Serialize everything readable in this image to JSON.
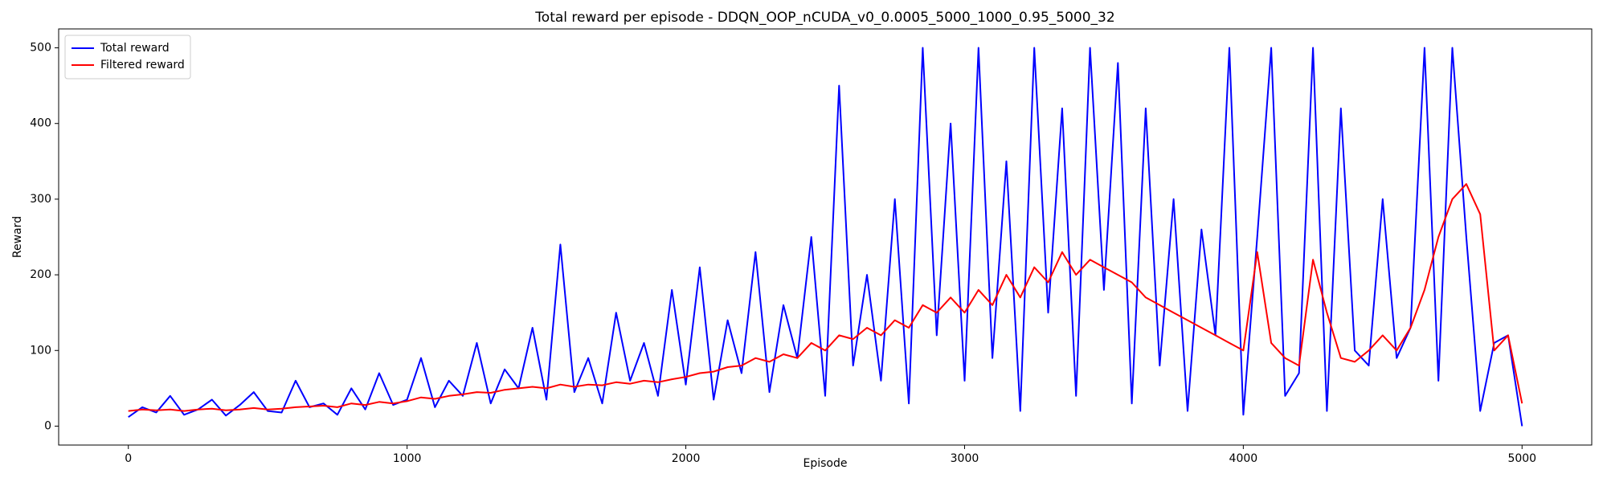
{
  "chart_data": {
    "type": "line",
    "title": "Total reward per episode - DDQN_OOP_nCUDA_v0_0.0005_5000_1000_0.95_5000_32",
    "x_label": "Episode",
    "y_label": "Reward",
    "x": [
      0,
      50,
      100,
      150,
      200,
      250,
      300,
      350,
      400,
      450,
      500,
      550,
      600,
      650,
      700,
      750,
      800,
      850,
      900,
      950,
      1000,
      1050,
      1100,
      1150,
      1200,
      1250,
      1300,
      1350,
      1400,
      1450,
      1500,
      1550,
      1600,
      1650,
      1700,
      1750,
      1800,
      1850,
      1900,
      1950,
      2000,
      2050,
      2100,
      2150,
      2200,
      2250,
      2300,
      2350,
      2400,
      2450,
      2500,
      2550,
      2600,
      2650,
      2700,
      2750,
      2800,
      2850,
      2900,
      2950,
      3000,
      3050,
      3100,
      3150,
      3200,
      3250,
      3300,
      3350,
      3400,
      3450,
      3500,
      3550,
      3600,
      3650,
      3700,
      3750,
      3800,
      3850,
      3900,
      3950,
      4000,
      4050,
      4100,
      4150,
      4200,
      4250,
      4300,
      4350,
      4400,
      4450,
      4500,
      4550,
      4600,
      4650,
      4700,
      4750,
      4800,
      4850,
      4900,
      4950,
      5000
    ],
    "series": [
      {
        "name": "Total reward",
        "color": "#0000ff",
        "values": [
          12,
          25,
          18,
          40,
          15,
          22,
          35,
          14,
          28,
          45,
          20,
          18,
          60,
          25,
          30,
          15,
          50,
          22,
          70,
          28,
          35,
          90,
          25,
          60,
          40,
          110,
          30,
          75,
          50,
          130,
          35,
          240,
          45,
          90,
          30,
          150,
          60,
          110,
          40,
          180,
          55,
          210,
          35,
          140,
          70,
          230,
          45,
          160,
          90,
          250,
          40,
          450,
          80,
          200,
          60,
          300,
          30,
          500,
          120,
          400,
          60,
          500,
          90,
          350,
          20,
          500,
          150,
          420,
          40,
          500,
          180,
          480,
          30,
          420,
          80,
          300,
          20,
          260,
          120,
          500,
          15,
          250,
          500,
          40,
          70,
          500,
          20,
          420,
          100,
          80,
          300,
          90,
          130,
          500,
          60,
          500,
          250,
          20,
          110,
          120,
          0
        ]
      },
      {
        "name": "Filtered reward",
        "color": "#ff0000",
        "values": [
          20,
          22,
          21,
          22,
          20,
          22,
          23,
          21,
          22,
          24,
          22,
          23,
          25,
          26,
          27,
          25,
          30,
          28,
          32,
          30,
          33,
          38,
          36,
          40,
          42,
          45,
          44,
          48,
          50,
          52,
          50,
          55,
          52,
          55,
          54,
          58,
          56,
          60,
          58,
          62,
          65,
          70,
          72,
          78,
          80,
          90,
          85,
          95,
          90,
          110,
          100,
          120,
          115,
          130,
          120,
          140,
          130,
          160,
          150,
          170,
          150,
          180,
          160,
          200,
          170,
          210,
          190,
          230,
          200,
          220,
          210,
          200,
          190,
          170,
          160,
          150,
          140,
          130,
          120,
          110,
          100,
          230,
          110,
          90,
          80,
          220,
          150,
          90,
          85,
          100,
          120,
          100,
          130,
          180,
          250,
          300,
          320,
          280,
          100,
          120,
          30
        ]
      }
    ],
    "xlim": [
      -250,
      5250
    ],
    "xticks": [
      0,
      1000,
      2000,
      3000,
      4000,
      5000
    ],
    "ylim": [
      -25,
      525
    ],
    "yticks": [
      0,
      100,
      200,
      300,
      400,
      500
    ],
    "grid": false,
    "legend": "upper left"
  }
}
